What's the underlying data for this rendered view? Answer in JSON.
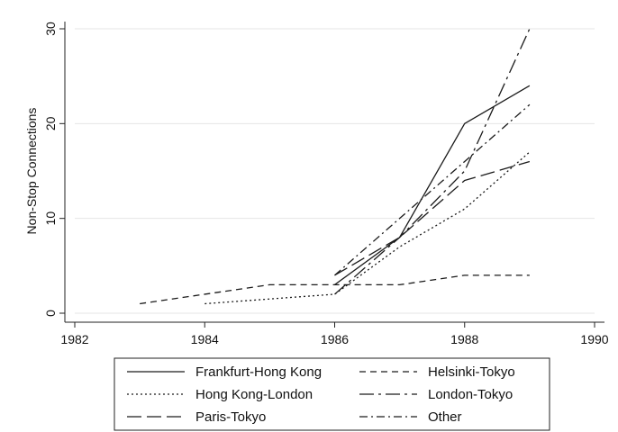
{
  "chart_data": {
    "type": "line",
    "title": "",
    "xlabel": "",
    "ylabel": "Non-Stop Connections",
    "xlim": [
      1982,
      1990
    ],
    "ylim": [
      0,
      30
    ],
    "xticks": [
      1982,
      1984,
      1986,
      1988,
      1990
    ],
    "yticks": [
      0,
      10,
      20,
      30
    ],
    "grid": "horizontal",
    "legend_position": "bottom",
    "series": [
      {
        "name": "Frankfurt-Hong Kong",
        "dash": "solid",
        "x": [
          1986,
          1987,
          1988,
          1989
        ],
        "y": [
          3,
          8,
          20,
          24
        ]
      },
      {
        "name": "Helsinki-Tokyo",
        "dash": "dash",
        "x": [
          1983,
          1984,
          1985,
          1986,
          1987,
          1988,
          1989
        ],
        "y": [
          1,
          2,
          3,
          3,
          3,
          4,
          4
        ]
      },
      {
        "name": "Hong Kong-London",
        "dash": "dot",
        "x": [
          1984,
          1985,
          1986,
          1987,
          1988,
          1989
        ],
        "y": [
          1,
          1.5,
          2,
          7,
          11,
          17
        ]
      },
      {
        "name": "London-Tokyo",
        "dash": "longdash-dot",
        "x": [
          1986,
          1987,
          1988,
          1989
        ],
        "y": [
          2,
          8,
          15,
          30
        ]
      },
      {
        "name": "Paris-Tokyo",
        "dash": "longdash",
        "x": [
          1986,
          1987,
          1988,
          1989
        ],
        "y": [
          4,
          8,
          14,
          16
        ]
      },
      {
        "name": "Other",
        "dash": "dash-dot",
        "x": [
          1986,
          1987,
          1988,
          1989
        ],
        "y": [
          4,
          10,
          16,
          22
        ]
      }
    ]
  }
}
